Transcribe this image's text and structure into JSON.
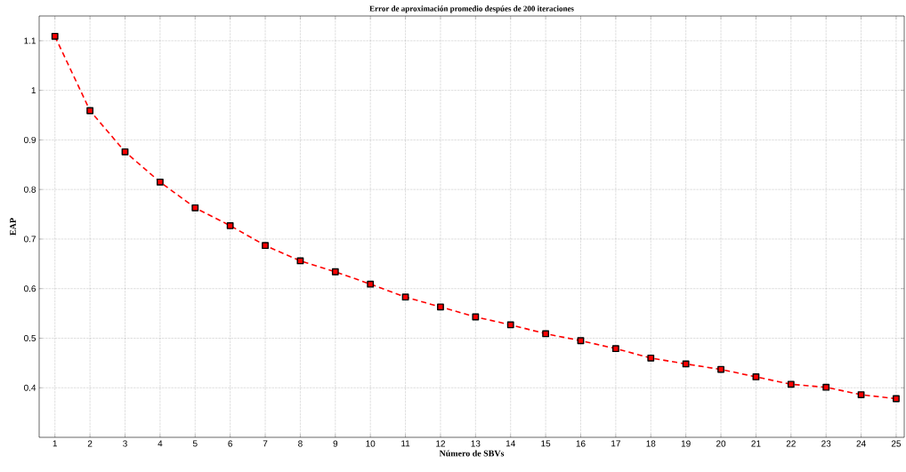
{
  "chart_data": {
    "type": "line",
    "title": "Error de aproximación promedio despúes de 200 iteraciones",
    "xlabel": "Número de SBVs",
    "ylabel": "EAP",
    "x": [
      1,
      2,
      3,
      4,
      5,
      6,
      7,
      8,
      9,
      10,
      11,
      12,
      13,
      14,
      15,
      16,
      17,
      18,
      19,
      20,
      21,
      22,
      23,
      24,
      25
    ],
    "series": [
      {
        "color": "#ff0000",
        "values": [
          1.109,
          0.959,
          0.876,
          0.815,
          0.763,
          0.727,
          0.687,
          0.656,
          0.634,
          0.609,
          0.583,
          0.563,
          0.543,
          0.527,
          0.509,
          0.495,
          0.479,
          0.46,
          0.448,
          0.437,
          0.422,
          0.407,
          0.401,
          0.386,
          0.378
        ]
      }
    ],
    "xlim": [
      0.55,
      25.23
    ],
    "ylim": [
      0.3,
      1.15
    ],
    "xticks": [
      1,
      2,
      3,
      4,
      5,
      6,
      7,
      8,
      9,
      10,
      11,
      12,
      13,
      14,
      15,
      16,
      17,
      18,
      19,
      20,
      21,
      22,
      23,
      24,
      25
    ],
    "yticks": [
      0.4,
      0.5,
      0.6,
      0.7,
      0.8,
      0.9,
      1,
      1.1
    ],
    "grid": true,
    "marker": "square",
    "line_style": "dashed"
  }
}
